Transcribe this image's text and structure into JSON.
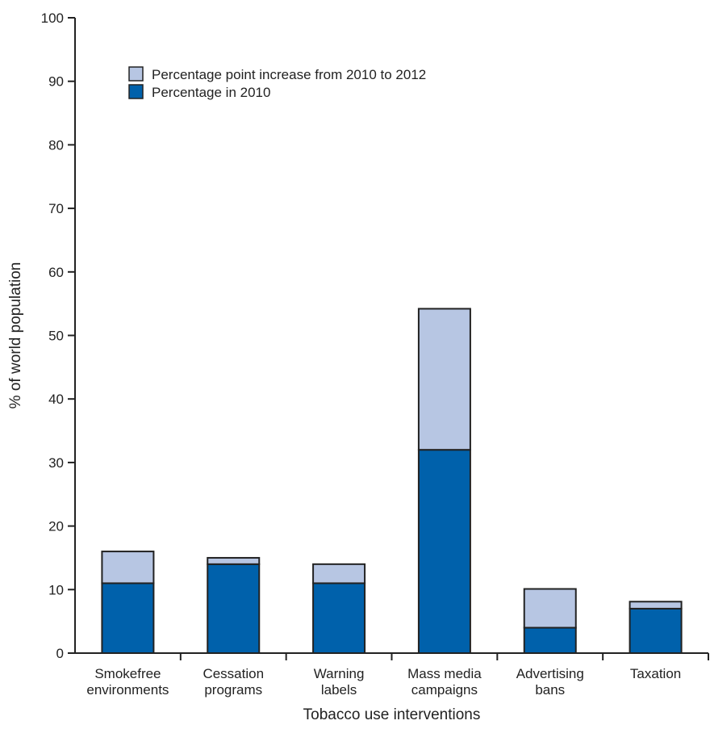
{
  "chart_data": {
    "type": "bar",
    "stacked": true,
    "xlabel": "Tobacco use interventions",
    "ylabel": "% of world population",
    "ylim": [
      0,
      100
    ],
    "yticks": [
      0,
      10,
      20,
      30,
      40,
      50,
      60,
      70,
      80,
      90,
      100
    ],
    "categories": [
      [
        "Smokefree",
        "environments"
      ],
      [
        "Cessation",
        "programs"
      ],
      [
        "Warning",
        "labels"
      ],
      [
        "Mass media",
        "campaigns"
      ],
      [
        "Advertising",
        "bans"
      ],
      [
        "Taxation"
      ]
    ],
    "series": [
      {
        "name": "Percentage in 2010",
        "color": "#0061AB",
        "values": [
          11,
          14,
          11,
          32,
          4,
          7
        ]
      },
      {
        "name": "Percentage point increase from 2010 to 2012",
        "color": "#B7C6E3",
        "values": [
          5,
          1,
          3,
          22.2,
          6.1,
          1.1
        ]
      }
    ],
    "legend": {
      "position": "top-left",
      "order": [
        1,
        0
      ]
    },
    "grid": false
  }
}
